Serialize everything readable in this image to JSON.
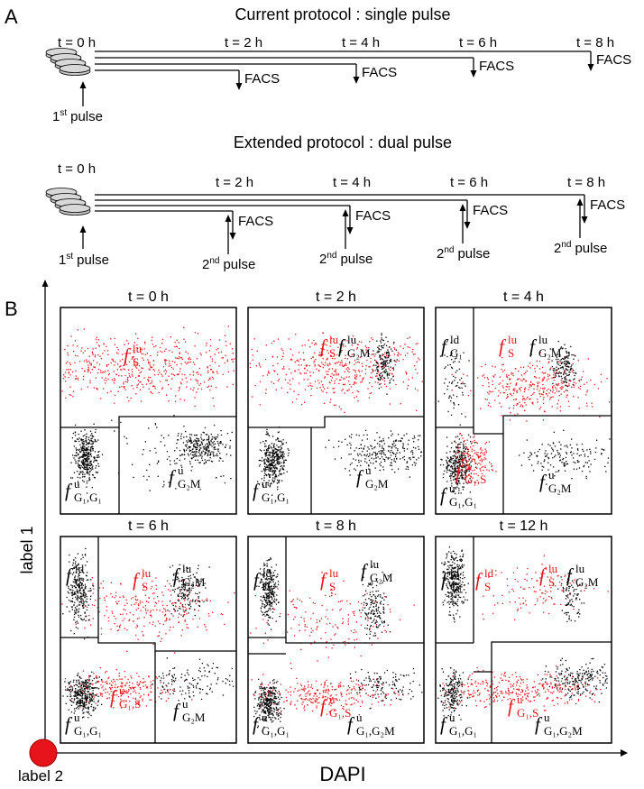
{
  "panel_a": {
    "label": "A",
    "current": {
      "title": "Current protocol :  single pulse",
      "t0": "t = 0 h",
      "times": [
        "t = 2 h",
        "t = 4 h",
        "t = 6 h",
        "t = 8 h"
      ],
      "readout": "FACS",
      "pulse": {
        "num": "1",
        "sup": "st",
        "text": "pulse"
      }
    },
    "extended": {
      "title": "Extended protocol : dual pulse",
      "t0": "t = 0 h",
      "times": [
        "t = 2 h",
        "t = 4 h",
        "t = 6 h",
        "t = 8 h"
      ],
      "readout": "FACS",
      "first_pulse": {
        "num": "1",
        "sup": "st",
        "text": "pulse"
      },
      "second_pulse": {
        "num": "2",
        "sup": "nd",
        "text": "pulse"
      }
    }
  },
  "panel_b": {
    "label": "B",
    "y_axis": "label 1",
    "origin": "label 2",
    "x_axis": "DAPI",
    "panels": [
      {
        "title": "t = 0 h",
        "gates": [
          {
            "sym": "f",
            "sup": "lu",
            "sub": "S",
            "color": "#e8141b"
          },
          {
            "sym": "f",
            "sup": "u",
            "sub": "G₁,G₁",
            "color": "#000000"
          },
          {
            "sym": "f",
            "sup": "u",
            "sub": "G₂M",
            "color": "#000000"
          }
        ]
      },
      {
        "title": "t = 2 h",
        "gates": [
          {
            "sym": "f",
            "sup": "lu",
            "sub": "S",
            "color": "#e8141b"
          },
          {
            "sym": "f",
            "sup": "lu",
            "sub": "G₂M",
            "color": "#000000"
          },
          {
            "sym": "f",
            "sup": "u",
            "sub": "G₁,G₁",
            "color": "#000000"
          },
          {
            "sym": "f",
            "sup": "u",
            "sub": "G₂M",
            "color": "#000000"
          }
        ]
      },
      {
        "title": "t = 4 h",
        "gates": [
          {
            "sym": "f",
            "sup": "ld",
            "sub": "G₁",
            "color": "#000000"
          },
          {
            "sym": "f",
            "sup": "lu",
            "sub": "S",
            "color": "#e8141b"
          },
          {
            "sym": "f",
            "sup": "lu",
            "sub": "G₂M",
            "color": "#000000"
          },
          {
            "sym": "f",
            "sup": "u",
            "sub": "G₁,S",
            "color": "#e8141b"
          },
          {
            "sym": "f",
            "sup": "u",
            "sub": "G₁,G₁",
            "color": "#000000"
          },
          {
            "sym": "f",
            "sup": "u",
            "sub": "G₂M",
            "color": "#000000"
          }
        ]
      },
      {
        "title": "t = 6 h",
        "gates": [
          {
            "sym": "f",
            "sup": "ld",
            "sub": "G₁",
            "color": "#000000"
          },
          {
            "sym": "f",
            "sup": "lu",
            "sub": "S",
            "color": "#e8141b"
          },
          {
            "sym": "f",
            "sup": "lu",
            "sub": "G₂M",
            "color": "#000000"
          },
          {
            "sym": "f",
            "sup": "u",
            "sub": "G₁,S",
            "color": "#e8141b"
          },
          {
            "sym": "f",
            "sup": "u",
            "sub": "G₁,G₁",
            "color": "#000000"
          },
          {
            "sym": "f",
            "sup": "u",
            "sub": "G₂M",
            "color": "#000000"
          }
        ]
      },
      {
        "title": "t = 8 h",
        "gates": [
          {
            "sym": "f",
            "sup": "ld",
            "sub": "G₁",
            "color": "#000000"
          },
          {
            "sym": "f",
            "sup": "lu",
            "sub": "S",
            "color": "#e8141b"
          },
          {
            "sym": "f",
            "sup": "lu",
            "sub": "G₂M",
            "color": "#000000"
          },
          {
            "sym": "f",
            "sup": "u",
            "sub": "G₁,S",
            "color": "#e8141b"
          },
          {
            "sym": "f",
            "sup": "u",
            "sub": "G₁,G₁",
            "color": "#000000"
          },
          {
            "sym": "f",
            "sup": "u",
            "sub": "G₁,G₂M",
            "color": "#000000"
          }
        ]
      },
      {
        "title": "t = 12 h",
        "gates": [
          {
            "sym": "f",
            "sup": "ld",
            "sub": "G₁",
            "color": "#000000"
          },
          {
            "sym": "f",
            "sup": "ld",
            "sub": "S",
            "color": "#e8141b"
          },
          {
            "sym": "f",
            "sup": "lu",
            "sub": "S",
            "color": "#e8141b"
          },
          {
            "sym": "f",
            "sup": "lu",
            "sub": "G₂M",
            "color": "#000000"
          },
          {
            "sym": "f",
            "sup": "u",
            "sub": "G₁,S",
            "color": "#e8141b"
          },
          {
            "sym": "f",
            "sup": "u",
            "sub": "G₁,G₁",
            "color": "#000000"
          },
          {
            "sym": "f",
            "sup": "u",
            "sub": "G₁,G₂M",
            "color": "#000000"
          }
        ]
      }
    ]
  }
}
